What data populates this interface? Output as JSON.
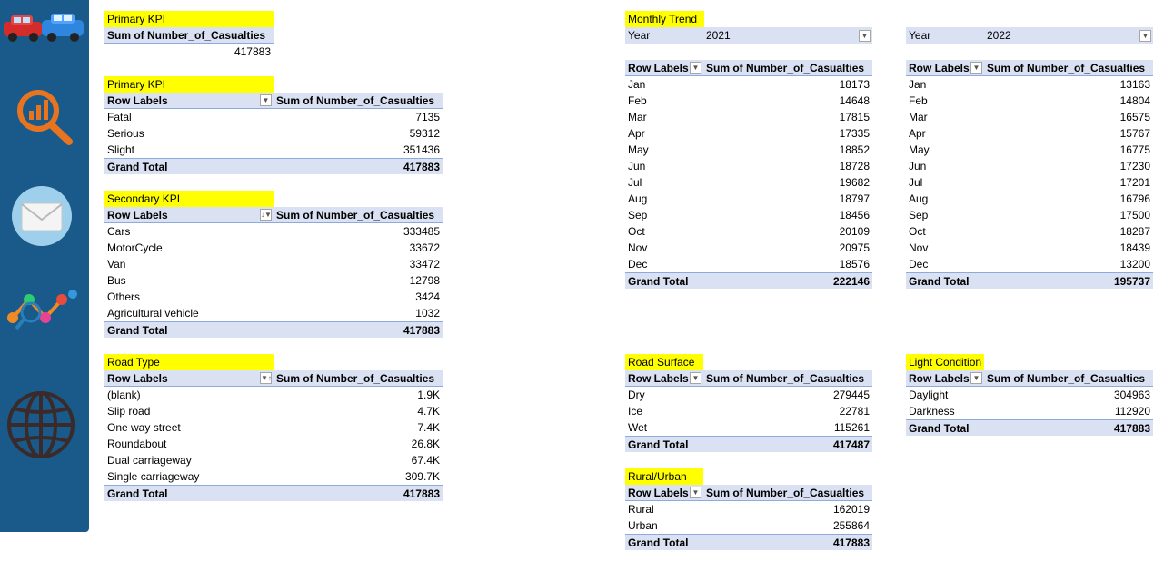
{
  "sidebar": {
    "icons": [
      "car-logo-icon",
      "analysis-icon",
      "mail-icon",
      "network-icon",
      "globe-icon"
    ]
  },
  "total_kpi": {
    "title": "Primary KPI",
    "header": "Sum of Number_of_Casualties",
    "value": "417883"
  },
  "severity": {
    "title": "Primary KPI",
    "row_header": "Row Labels",
    "value_header": "Sum of Number_of_Casualties",
    "rows": [
      {
        "label": "Fatal",
        "value": "7135"
      },
      {
        "label": "Serious",
        "value": "59312"
      },
      {
        "label": "Slight",
        "value": "351436"
      }
    ],
    "total_label": "Grand Total",
    "total_value": "417883"
  },
  "vehicle": {
    "title": "Secondary KPI",
    "row_header": "Row Labels",
    "value_header": "Sum of Number_of_Casualties",
    "rows": [
      {
        "label": "Cars",
        "value": "333485"
      },
      {
        "label": "MotorCycle",
        "value": "33672"
      },
      {
        "label": "Van",
        "value": "33472"
      },
      {
        "label": "Bus",
        "value": "12798"
      },
      {
        "label": "Others",
        "value": "3424"
      },
      {
        "label": "Agricultural vehicle",
        "value": "1032"
      }
    ],
    "total_label": "Grand Total",
    "total_value": "417883"
  },
  "road_type": {
    "title": "Road Type",
    "row_header": "Row Labels",
    "value_header": "Sum of Number_of_Casualties",
    "rows": [
      {
        "label": "(blank)",
        "value": "1.9K"
      },
      {
        "label": "Slip road",
        "value": "4.7K"
      },
      {
        "label": "One way street",
        "value": "7.4K"
      },
      {
        "label": "Roundabout",
        "value": "26.8K"
      },
      {
        "label": "Dual carriageway",
        "value": "67.4K"
      },
      {
        "label": "Single carriageway",
        "value": "309.7K"
      }
    ],
    "total_label": "Grand Total",
    "total_value": "417883"
  },
  "trend_2021": {
    "title": "Monthly Trend",
    "filter_label": "Year",
    "filter_value": "2021",
    "row_header": "Row Labels",
    "value_header": "Sum of Number_of_Casualties",
    "rows": [
      {
        "label": "Jan",
        "value": "18173"
      },
      {
        "label": "Feb",
        "value": "14648"
      },
      {
        "label": "Mar",
        "value": "17815"
      },
      {
        "label": "Apr",
        "value": "17335"
      },
      {
        "label": "May",
        "value": "18852"
      },
      {
        "label": "Jun",
        "value": "18728"
      },
      {
        "label": "Jul",
        "value": "19682"
      },
      {
        "label": "Aug",
        "value": "18797"
      },
      {
        "label": "Sep",
        "value": "18456"
      },
      {
        "label": "Oct",
        "value": "20109"
      },
      {
        "label": "Nov",
        "value": "20975"
      },
      {
        "label": "Dec",
        "value": "18576"
      }
    ],
    "total_label": "Grand Total",
    "total_value": "222146"
  },
  "trend_2022": {
    "filter_label": "Year",
    "filter_value": "2022",
    "row_header": "Row Labels",
    "value_header": "Sum of Number_of_Casualties",
    "rows": [
      {
        "label": "Jan",
        "value": "13163"
      },
      {
        "label": "Feb",
        "value": "14804"
      },
      {
        "label": "Mar",
        "value": "16575"
      },
      {
        "label": "Apr",
        "value": "15767"
      },
      {
        "label": "May",
        "value": "16775"
      },
      {
        "label": "Jun",
        "value": "17230"
      },
      {
        "label": "Jul",
        "value": "17201"
      },
      {
        "label": "Aug",
        "value": "16796"
      },
      {
        "label": "Sep",
        "value": "17500"
      },
      {
        "label": "Oct",
        "value": "18287"
      },
      {
        "label": "Nov",
        "value": "18439"
      },
      {
        "label": "Dec",
        "value": "13200"
      }
    ],
    "total_label": "Grand Total",
    "total_value": "195737"
  },
  "road_surface": {
    "title": "Road Surface",
    "row_header": "Row Labels",
    "value_header": "Sum of Number_of_Casualties",
    "rows": [
      {
        "label": "Dry",
        "value": "279445"
      },
      {
        "label": "Ice",
        "value": "22781"
      },
      {
        "label": "Wet",
        "value": "115261"
      }
    ],
    "total_label": "Grand Total",
    "total_value": "417487"
  },
  "light": {
    "title": "Light Condition",
    "row_header": "Row Labels",
    "value_header": "Sum of Number_of_Casualties",
    "rows": [
      {
        "label": "Daylight",
        "value": "304963"
      },
      {
        "label": "Darkness",
        "value": "112920"
      }
    ],
    "total_label": "Grand Total",
    "total_value": "417883"
  },
  "rural": {
    "title": "Rural/Urban",
    "row_header": "Row Labels",
    "value_header": "Sum of Number_of_Casualties",
    "rows": [
      {
        "label": "Rural",
        "value": "162019"
      },
      {
        "label": "Urban",
        "value": "255864"
      }
    ],
    "total_label": "Grand Total",
    "total_value": "417883"
  }
}
